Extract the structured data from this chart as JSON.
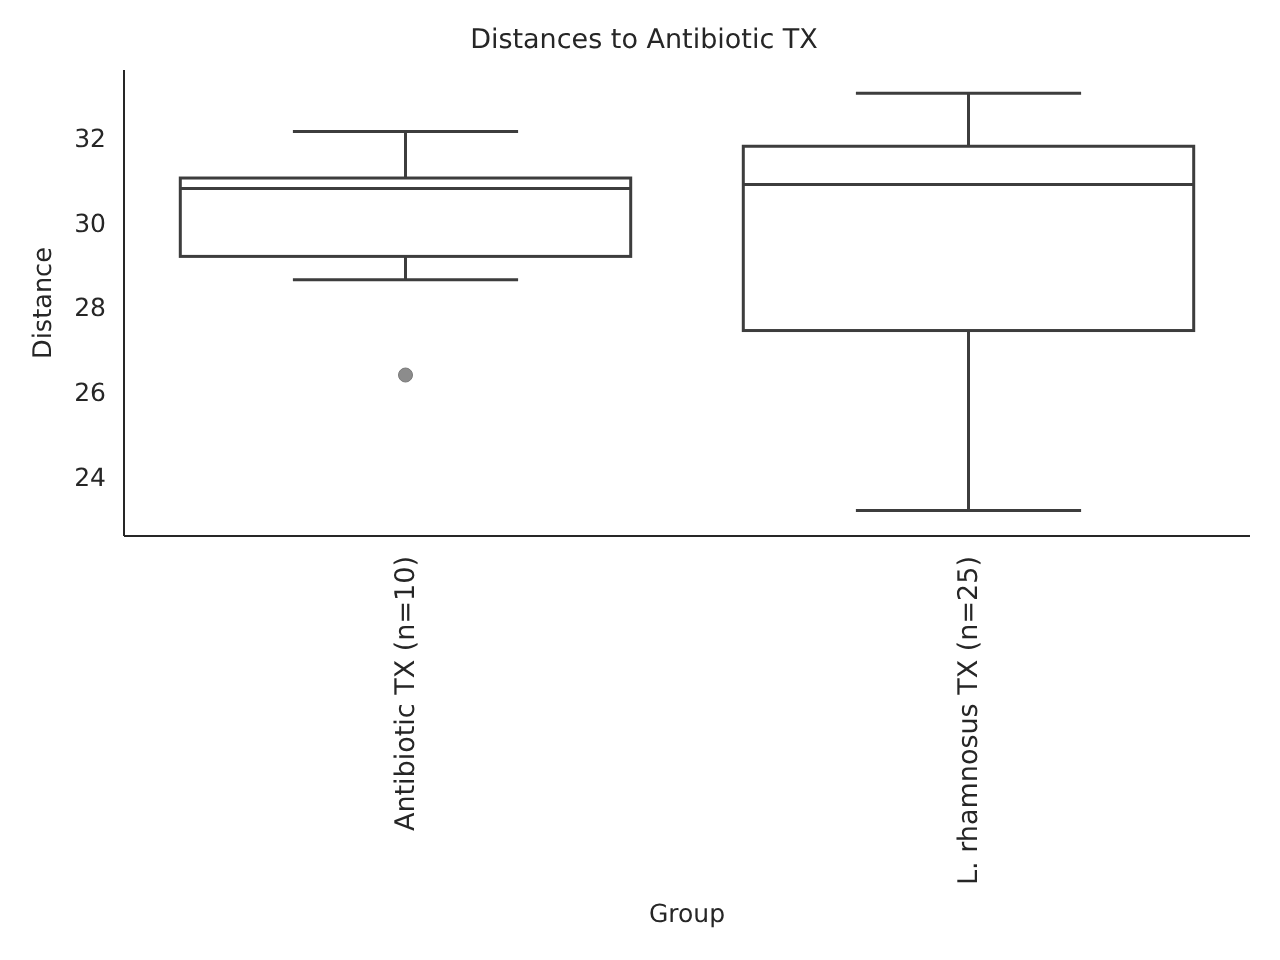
{
  "chart_data": {
    "type": "box",
    "title": "Distances to Antibiotic TX",
    "xlabel": "Group",
    "ylabel": "Distance",
    "categories": [
      "Antibiotic TX (n=10)",
      "L. rhamnosus TX (n=25)"
    ],
    "boxes": [
      {
        "low": 28.65,
        "q1": 29.2,
        "median": 30.8,
        "q3": 31.05,
        "high": 32.15,
        "outliers": [
          26.4
        ]
      },
      {
        "low": 23.2,
        "q1": 27.45,
        "median": 30.9,
        "q3": 31.8,
        "high": 33.05
      }
    ],
    "ylim": [
      22.6,
      33.6
    ],
    "yticks": [
      24,
      26,
      28,
      30,
      32
    ]
  }
}
